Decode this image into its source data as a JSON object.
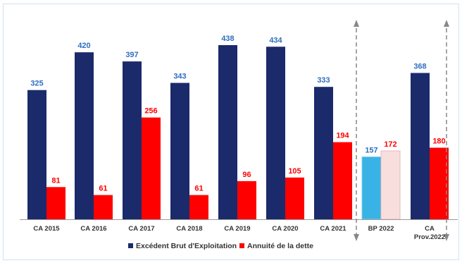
{
  "chart_data": {
    "type": "bar",
    "categories": [
      "CA 2015",
      "CA 2016",
      "CA 2017",
      "CA 2018",
      "CA 2019",
      "CA 2020",
      "CA 2021",
      "BP 2022",
      "CA Prov.2022"
    ],
    "category_lines": [
      [
        "CA 2015"
      ],
      [
        "CA 2016"
      ],
      [
        "CA 2017"
      ],
      [
        "CA 2018"
      ],
      [
        "CA 2019"
      ],
      [
        "CA 2020"
      ],
      [
        "CA 2021"
      ],
      [
        "BP 2022"
      ],
      [
        "CA",
        "Prov.2022"
      ]
    ],
    "series": [
      {
        "name": "Excédent Brut d'Exploitation",
        "values": [
          325,
          420,
          397,
          343,
          438,
          434,
          333,
          157,
          368
        ],
        "color": "#1b2a6b",
        "highlight_color": "#39b3e6",
        "label_color": "#2e6fbf"
      },
      {
        "name": "Annuité de la dette",
        "values": [
          81,
          61,
          256,
          61,
          96,
          105,
          194,
          172,
          180
        ],
        "color": "#ff0000",
        "highlight_color": "#f9dede",
        "label_color": "#ff0000"
      }
    ],
    "highlight_index": 7,
    "ylim": [
      0,
      460
    ],
    "legend_position": "bottom",
    "grid": false
  }
}
